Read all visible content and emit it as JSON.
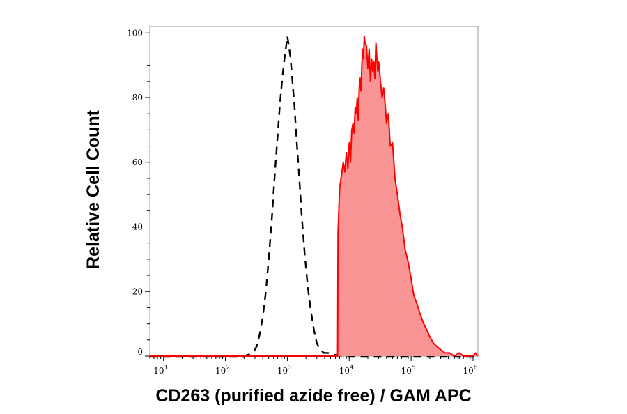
{
  "chart_data": {
    "type": "area",
    "title": "",
    "xlabel": "CD263 (purified azide free) / GAM APC",
    "ylabel": "Relative Cell Count",
    "x_scale": "log",
    "xlim": [
      6,
      1200000
    ],
    "ylim": [
      0,
      102
    ],
    "grid": false,
    "legend": "none",
    "x_ticks": [
      {
        "base": "10",
        "exp": "1",
        "value": 10
      },
      {
        "base": "10",
        "exp": "2",
        "value": 100
      },
      {
        "base": "10",
        "exp": "3",
        "value": 1000
      },
      {
        "base": "10",
        "exp": "4",
        "value": 10000
      },
      {
        "base": "10",
        "exp": "5",
        "value": 100000
      },
      {
        "base": "10",
        "exp": "6",
        "value": 1000000
      }
    ],
    "y_ticks": [
      {
        "label": "0",
        "value": 0
      },
      {
        "label": "20",
        "value": 20
      },
      {
        "label": "40",
        "value": 40
      },
      {
        "label": "60",
        "value": 60
      },
      {
        "label": "80",
        "value": 80
      },
      {
        "label": "100",
        "value": 100
      }
    ],
    "series": [
      {
        "style": "dashed",
        "color": "#000000",
        "x": [
          6,
          200,
          280,
          320,
          360,
          400,
          450,
          500,
          560,
          620,
          690,
          760,
          830,
          900,
          960,
          1000,
          1060,
          1130,
          1200,
          1300,
          1400,
          1550,
          1700,
          1900,
          2150,
          2400,
          2700,
          3000,
          3400,
          3900,
          4500,
          5500,
          8000,
          20000,
          100000,
          1200000
        ],
        "y": [
          0,
          0,
          1,
          3,
          7,
          12,
          20,
          30,
          42,
          55,
          67,
          78,
          86,
          92,
          96,
          99,
          96,
          92,
          86,
          78,
          68,
          56,
          44,
          32,
          21,
          14,
          8,
          4,
          2,
          1,
          1,
          0.5,
          0,
          0,
          0,
          0
        ]
      },
      {
        "style": "filled",
        "color": "#ff0000",
        "fill": "#f89494",
        "x": [
          6,
          6500,
          6600,
          7000,
          7500,
          8000,
          8500,
          9000,
          9500,
          10000,
          10500,
          11000,
          11500,
          12000,
          12500,
          13000,
          13500,
          14000,
          14500,
          15000,
          15500,
          16000,
          16500,
          17000,
          17500,
          18000,
          19000,
          20000,
          21000,
          22000,
          23000,
          24000,
          25000,
          26000,
          27000,
          28000,
          29000,
          30000,
          32000,
          34000,
          36000,
          38000,
          40000,
          43000,
          46000,
          50000,
          55000,
          60000,
          66000,
          72000,
          80000,
          90000,
          100000,
          110000,
          125000,
          140000,
          160000,
          180000,
          200000,
          230000,
          260000,
          300000,
          350000,
          420000,
          500000,
          600000,
          700000,
          800000,
          900000,
          1000000,
          1100000,
          1200000
        ],
        "y": [
          0,
          0,
          38,
          52,
          56,
          60,
          57,
          63,
          58,
          66,
          60,
          70,
          72,
          69,
          77,
          75,
          80,
          73,
          83,
          86,
          82,
          90,
          95,
          92,
          99,
          97,
          96,
          89,
          95,
          85,
          92,
          88,
          91,
          86,
          97,
          92,
          88,
          91,
          85,
          80,
          83,
          78,
          72,
          75,
          65,
          66,
          55,
          50,
          44,
          40,
          33,
          29,
          24,
          19,
          16,
          13,
          10,
          8,
          6,
          4,
          3,
          2,
          1,
          1,
          0,
          1,
          0,
          0,
          0,
          0,
          1,
          0
        ]
      }
    ]
  }
}
